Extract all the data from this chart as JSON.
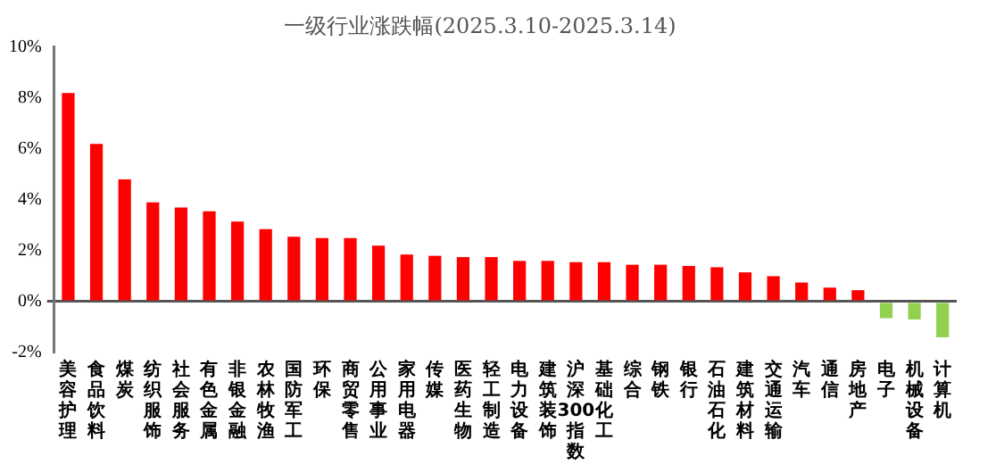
{
  "chart_data": {
    "type": "bar",
    "title": "一级行业涨跌幅(2025.3.10-2025.3.14)",
    "categories": [
      "美容护理",
      "食品饮料",
      "煤炭",
      "纺织服饰",
      "社会服务",
      "有色金属",
      "非银金融",
      "农林牧渔",
      "国防军工",
      "环保",
      "商贸零售",
      "公用事业",
      "家用电器",
      "传媒",
      "医药生物",
      "轻工制造",
      "电力设备",
      "建筑装饰",
      "沪深300指数",
      "基础化工",
      "综合",
      "钢铁",
      "银行",
      "石油石化",
      "建筑材料",
      "交通运输",
      "汽车",
      "通信",
      "房地产",
      "电子",
      "机械设备",
      "计算机"
    ],
    "values": [
      8.2,
      6.2,
      4.8,
      3.9,
      3.7,
      3.55,
      3.15,
      2.85,
      2.55,
      2.5,
      2.5,
      2.2,
      1.85,
      1.8,
      1.75,
      1.75,
      1.6,
      1.6,
      1.55,
      1.55,
      1.45,
      1.45,
      1.4,
      1.35,
      1.15,
      1.0,
      0.75,
      0.55,
      0.45,
      -0.65,
      -0.7,
      -1.4
    ],
    "colors": [
      "#ff0000",
      "#ff0000",
      "#ff0000",
      "#ff0000",
      "#ff0000",
      "#ff0000",
      "#ff0000",
      "#ff0000",
      "#ff0000",
      "#ff0000",
      "#ff0000",
      "#ff0000",
      "#ff0000",
      "#ff0000",
      "#ff0000",
      "#ff0000",
      "#ff0000",
      "#ff0000",
      "#ff0000",
      "#ff0000",
      "#ff0000",
      "#ff0000",
      "#ff0000",
      "#ff0000",
      "#ff0000",
      "#ff0000",
      "#ff0000",
      "#ff0000",
      "#ff0000",
      "#92d050",
      "#92d050",
      "#92d050"
    ],
    "ylim": [
      -2,
      10
    ],
    "yticks": [
      {
        "value": -2,
        "label": "-2%"
      },
      {
        "value": 0,
        "label": "0%"
      },
      {
        "value": 2,
        "label": "2%"
      },
      {
        "value": 4,
        "label": "4%"
      },
      {
        "value": 6,
        "label": "6%"
      },
      {
        "value": 8,
        "label": "8%"
      },
      {
        "value": 10,
        "label": "10%"
      }
    ],
    "legend": false
  }
}
